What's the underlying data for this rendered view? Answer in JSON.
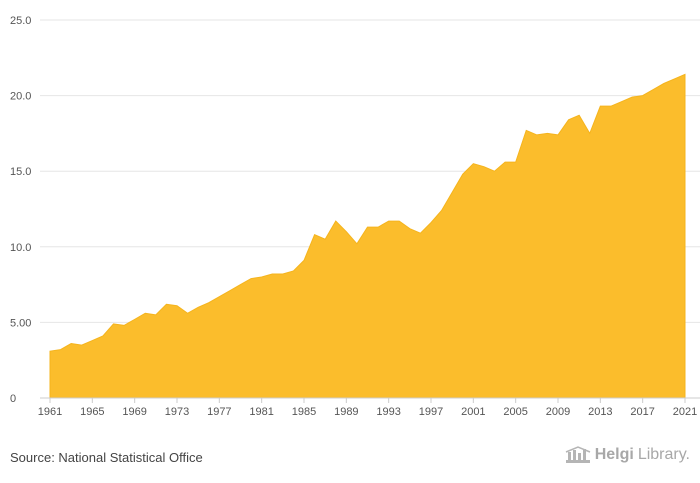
{
  "chart_data": {
    "type": "area",
    "title": "",
    "xlabel": "",
    "ylabel": "",
    "color": "#fbbd2c",
    "grid": true,
    "ylim": [
      0,
      25
    ],
    "xlim": [
      1961,
      2021
    ],
    "y_ticks": [
      {
        "value": 0,
        "label": "0"
      },
      {
        "value": 5,
        "label": "5.00"
      },
      {
        "value": 10,
        "label": "10.0"
      },
      {
        "value": 15,
        "label": "15.0"
      },
      {
        "value": 20,
        "label": "20.0"
      },
      {
        "value": 25,
        "label": "25.0"
      }
    ],
    "x_ticks": [
      {
        "value": 1961,
        "label": "1961"
      },
      {
        "value": 1965,
        "label": "1965"
      },
      {
        "value": 1969,
        "label": "1969"
      },
      {
        "value": 1973,
        "label": "1973"
      },
      {
        "value": 1977,
        "label": "1977"
      },
      {
        "value": 1981,
        "label": "1981"
      },
      {
        "value": 1985,
        "label": "1985"
      },
      {
        "value": 1989,
        "label": "1989"
      },
      {
        "value": 1993,
        "label": "1993"
      },
      {
        "value": 1997,
        "label": "1997"
      },
      {
        "value": 2001,
        "label": "2001"
      },
      {
        "value": 2005,
        "label": "2005"
      },
      {
        "value": 2009,
        "label": "2009"
      },
      {
        "value": 2013,
        "label": "2013"
      },
      {
        "value": 2017,
        "label": "2017"
      },
      {
        "value": 2021,
        "label": "2021"
      }
    ],
    "x": [
      1961,
      1962,
      1963,
      1964,
      1965,
      1966,
      1967,
      1968,
      1969,
      1970,
      1971,
      1972,
      1973,
      1974,
      1975,
      1976,
      1977,
      1978,
      1979,
      1980,
      1981,
      1982,
      1983,
      1984,
      1985,
      1986,
      1987,
      1988,
      1989,
      1990,
      1991,
      1992,
      1993,
      1994,
      1995,
      1996,
      1997,
      1998,
      1999,
      2000,
      2001,
      2002,
      2003,
      2004,
      2005,
      2006,
      2007,
      2008,
      2009,
      2010,
      2011,
      2012,
      2013,
      2014,
      2015,
      2016,
      2017,
      2018,
      2019,
      2020,
      2021
    ],
    "values": [
      3.1,
      3.2,
      3.6,
      3.5,
      3.8,
      4.1,
      4.9,
      4.8,
      5.2,
      5.6,
      5.5,
      6.2,
      6.1,
      5.6,
      6.0,
      6.3,
      6.7,
      7.1,
      7.5,
      7.9,
      8.0,
      8.2,
      8.2,
      8.4,
      9.1,
      10.8,
      10.5,
      11.7,
      11.0,
      10.2,
      11.3,
      11.3,
      11.7,
      11.7,
      11.2,
      10.9,
      11.6,
      12.4,
      13.6,
      14.8,
      15.5,
      15.3,
      15.0,
      15.6,
      15.6,
      17.7,
      17.4,
      17.5,
      17.4,
      18.4,
      18.7,
      17.5,
      19.3,
      19.3,
      19.6,
      19.9,
      20.0,
      20.4,
      20.8,
      21.1,
      21.4
    ]
  },
  "footer": {
    "source": "Source: National Statistical Office",
    "logo_brand": "Helgi",
    "logo_product": "Library."
  }
}
